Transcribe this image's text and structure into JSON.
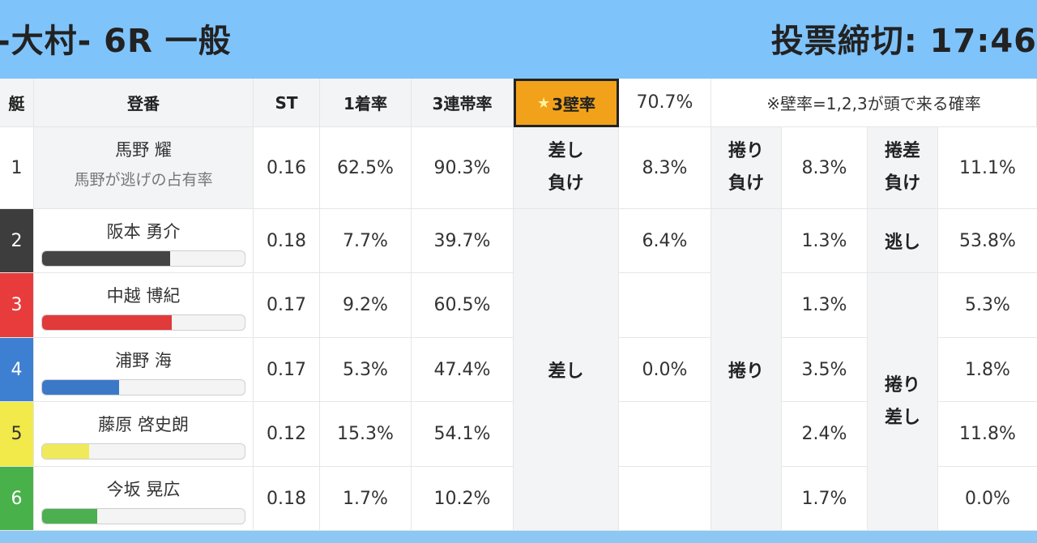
{
  "header": {
    "title": "-大村- 6R 一般",
    "deadline": "投票締切: 17:46"
  },
  "columns": {
    "boat": "艇",
    "name": "登番",
    "st": "ST",
    "first": "1着率",
    "top3": "3連帯率",
    "kabe": "3壁率",
    "kabe_value": "70.7%",
    "note": "※壁率=1,2,3が頭で来る確率"
  },
  "star": "★",
  "rows": [
    {
      "boat": "1",
      "name": "馬野 耀",
      "sub": "馬野が逃げの占有率",
      "st": "0.16",
      "first": "62.5%",
      "top3": "90.3%"
    },
    {
      "boat": "2",
      "name": "阪本 勇介",
      "st": "0.18",
      "first": "7.7%",
      "top3": "39.7%",
      "bar": 0.63
    },
    {
      "boat": "3",
      "name": "中越 博紀",
      "st": "0.17",
      "first": "9.2%",
      "top3": "60.5%",
      "bar": 0.64
    },
    {
      "boat": "4",
      "name": "浦野 海",
      "st": "0.17",
      "first": "5.3%",
      "top3": "47.4%",
      "bar": 0.38
    },
    {
      "boat": "5",
      "name": "藤原 啓史朗",
      "st": "0.12",
      "first": "15.3%",
      "top3": "54.1%",
      "bar": 0.23
    },
    {
      "boat": "6",
      "name": "今坂 晃広",
      "st": "0.18",
      "first": "1.7%",
      "top3": "10.2%",
      "bar": 0.27
    }
  ],
  "colors": {
    "boat1": "#ffffff",
    "boat2": "#3d3d3d",
    "boat3": "#e83c3c",
    "boat4": "#3d7fd1",
    "boat5": "#f2e94a",
    "boat6": "#49b14a",
    "bar2": "#444444",
    "bar3": "#e13a3a",
    "bar4": "#3c78c8",
    "bar5": "#f0ea5a",
    "bar6": "#4caf50"
  },
  "kimarite": {
    "sashi_make_1": "差し",
    "sashi_make_2": "負け",
    "sashi": "差し",
    "makuri_make_1": "捲り",
    "makuri_make_2": "負け",
    "makuri": "捲り",
    "makurizashi_make_1": "捲差",
    "makurizashi_make_2": "負け",
    "nigashi": "逃し",
    "makurizashi_1": "捲り",
    "makurizashi_2": "差し"
  },
  "values": {
    "a": [
      "8.3%",
      "6.4%",
      "0.0%"
    ],
    "b": [
      "8.3%",
      "1.3%",
      "1.3%",
      "3.5%",
      "2.4%",
      "1.7%"
    ],
    "c": [
      "11.1%",
      "53.8%",
      "5.3%",
      "1.8%",
      "11.8%",
      "0.0%"
    ]
  }
}
